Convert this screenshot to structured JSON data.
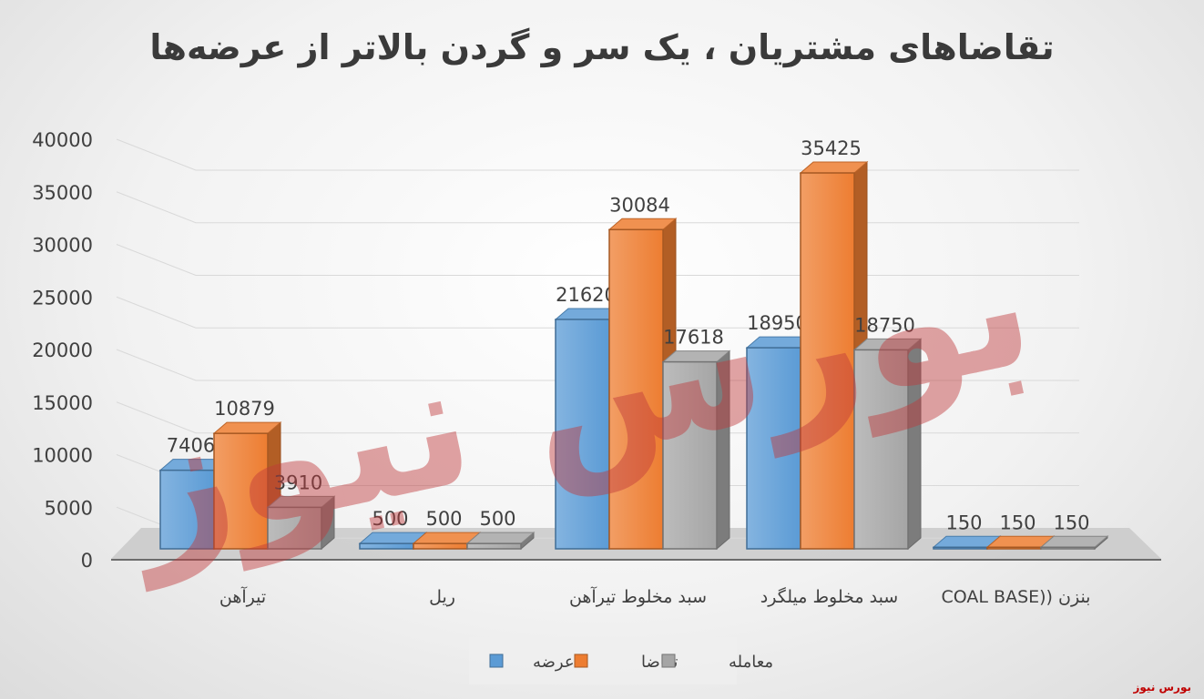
{
  "title": "تقاضاهای مشتریان ، یک سر و گردن بالاتر از عرضه‌ها",
  "credit": "بورس نیوز",
  "watermark_text": "بورس نیوز",
  "colors": {
    "series": [
      "#5b9bd5",
      "#ed7d31",
      "#a5a5a5"
    ],
    "watermark": "#c0393b",
    "axis_text": "#404040",
    "grid": "#d9d9d9",
    "credit": "#c00000"
  },
  "chart_data": {
    "type": "bar",
    "three_d": true,
    "categories": [
      "تیرآهن",
      "ریل",
      "سبد مخلوط تیرآهن",
      "سبد مخلوط میلگرد",
      "بنزن ((COAL BASE"
    ],
    "series": [
      {
        "name": "عرضه",
        "values": [
          7406,
          500,
          21620,
          18950,
          150
        ]
      },
      {
        "name": "تقاضا",
        "values": [
          10879,
          500,
          30084,
          35425,
          150
        ]
      },
      {
        "name": "معامله",
        "values": [
          3910,
          500,
          17618,
          18750,
          150
        ]
      }
    ],
    "y_ticks": [
      "0",
      "5000",
      "10000",
      "15000",
      "20000",
      "25000",
      "30000",
      "35000",
      "40000"
    ],
    "ylim": [
      0,
      40000
    ],
    "grid": true,
    "legend": "bottom"
  }
}
